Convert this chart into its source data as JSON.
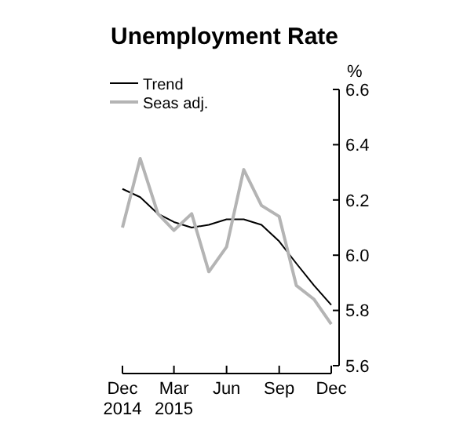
{
  "chart_data": {
    "type": "line",
    "title": "Unemployment Rate",
    "ylabel": "%",
    "x": [
      "2014-12",
      "2015-01",
      "2015-02",
      "2015-03",
      "2015-04",
      "2015-05",
      "2015-06",
      "2015-07",
      "2015-08",
      "2015-09",
      "2015-10",
      "2015-11",
      "2015-12"
    ],
    "series": [
      {
        "name": "Trend",
        "color": "#000000",
        "values": [
          6.24,
          6.21,
          6.15,
          6.12,
          6.1,
          6.11,
          6.13,
          6.13,
          6.11,
          6.05,
          5.97,
          5.89,
          5.82
        ]
      },
      {
        "name": "Seas adj.",
        "color": "#b4b4b4",
        "values": [
          6.1,
          6.35,
          6.15,
          6.09,
          6.15,
          5.94,
          6.03,
          6.31,
          6.18,
          6.14,
          5.89,
          5.84,
          5.75
        ]
      }
    ],
    "xlim": [
      "2014-12",
      "2015-12"
    ],
    "xticks": [
      {
        "value": "2014-12",
        "label": "Dec 2014"
      },
      {
        "value": "2015-03",
        "label": "Mar 2015"
      },
      {
        "value": "2015-06",
        "label": "Jun"
      },
      {
        "value": "2015-09",
        "label": "Sep"
      },
      {
        "value": "2015-12",
        "label": "Dec"
      }
    ],
    "ylim": [
      5.6,
      6.6
    ],
    "yticks": [
      5.6,
      5.8,
      {
        "value": 6,
        "label": "6.0"
      },
      6.2,
      6.4,
      6.6
    ],
    "legend": "top left",
    "grid": false,
    "line_style": "solid"
  }
}
